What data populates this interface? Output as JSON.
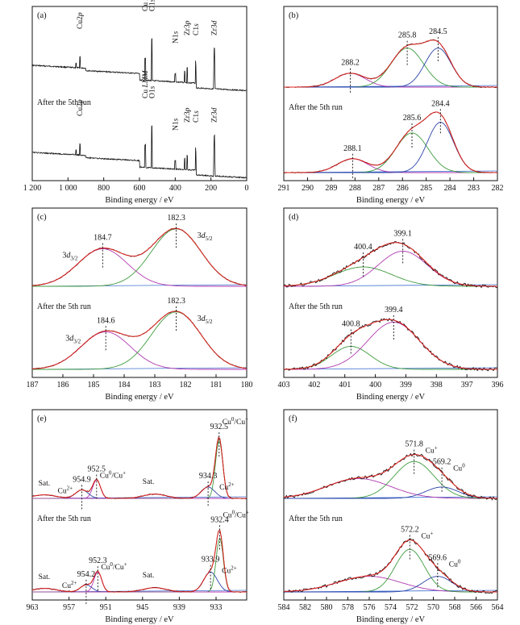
{
  "colors": {
    "raw": "#111111",
    "fit": "#e0201b",
    "green": "#3e9b3e",
    "blue": "#2c45a8",
    "magenta": "#b03ab0",
    "baseline": "#3f6fd0"
  },
  "xlabel": "Binding energy / eV",
  "run_label": "After the 5th run",
  "chart_data": [
    {
      "panel": "(a)",
      "type": "line",
      "xlim": [
        1200,
        0
      ],
      "xticks": [
        1200,
        1000,
        800,
        600,
        400,
        200,
        0
      ],
      "xtick_labels": [
        "1 200",
        "1 000",
        "800",
        "600",
        "400",
        "200",
        "0"
      ],
      "series": [
        {
          "values": [],
          "peaks": [
            [
              933,
              "Cu2p"
            ],
            [
              568,
              "Cu LMM"
            ],
            [
              531,
              "O1s"
            ],
            [
              400,
              "N1s"
            ],
            [
              333,
              "Zr3p"
            ],
            [
              285,
              "C1s"
            ],
            [
              182,
              "Zr3d"
            ]
          ]
        },
        {
          "values": [],
          "peaks": [
            [
              933,
              "Cu2p"
            ],
            [
              568,
              "Cu LMM"
            ],
            [
              531,
              "O1s"
            ],
            [
              400,
              "N1s"
            ],
            [
              333,
              "Zr3p"
            ],
            [
              285,
              "C1s"
            ],
            [
              182,
              "Zr3d"
            ]
          ]
        }
      ]
    },
    {
      "panel": "(b)",
      "type": "line",
      "xlim": [
        291,
        282
      ],
      "xticks": [
        291,
        290,
        289,
        288,
        287,
        286,
        285,
        284,
        283,
        282
      ],
      "xtick_labels": [
        "291",
        "290",
        "289",
        "288",
        "287",
        "286",
        "285",
        "284",
        "283",
        "282"
      ],
      "series": [
        {
          "peaks": [
            {
              "x": 288.2,
              "label": "288.2",
              "color": "magenta",
              "h": 0.22,
              "w": 0.75
            },
            {
              "x": 285.8,
              "label": "285.8",
              "color": "green",
              "h": 0.62,
              "w": 0.8
            },
            {
              "x": 284.5,
              "label": "284.5",
              "color": "blue",
              "h": 0.62,
              "w": 0.65
            }
          ]
        },
        {
          "peaks": [
            {
              "x": 288.1,
              "label": "288.1",
              "color": "magenta",
              "h": 0.22,
              "w": 0.75
            },
            {
              "x": 285.6,
              "label": "285.6",
              "color": "green",
              "h": 0.63,
              "w": 0.8
            },
            {
              "x": 284.4,
              "label": "284.4",
              "color": "blue",
              "h": 0.8,
              "w": 0.65
            }
          ]
        }
      ]
    },
    {
      "panel": "(c)",
      "type": "line",
      "xlim": [
        187,
        180
      ],
      "xticks": [
        187,
        186,
        185,
        184,
        183,
        182,
        181,
        180
      ],
      "xtick_labels": [
        "187",
        "186",
        "185",
        "184",
        "183",
        "182",
        "181",
        "180"
      ],
      "series": [
        {
          "peaks": [
            {
              "x": 184.7,
              "label": "184.7",
              "color": "magenta",
              "h": 0.62,
              "w": 0.95,
              "orbital": "3d3/2"
            },
            {
              "x": 182.3,
              "label": "182.3",
              "color": "green",
              "h": 0.95,
              "w": 0.95,
              "orbital": "3d5/2"
            }
          ]
        },
        {
          "peaks": [
            {
              "x": 184.6,
              "label": "184.6",
              "color": "magenta",
              "h": 0.62,
              "w": 0.95,
              "orbital": "3d3/2"
            },
            {
              "x": 182.3,
              "label": "182.3",
              "color": "green",
              "h": 0.95,
              "w": 0.95,
              "orbital": "3d5/2"
            }
          ]
        }
      ]
    },
    {
      "panel": "(d)",
      "type": "line",
      "xlim": [
        403,
        396
      ],
      "xticks": [
        403,
        402,
        401,
        400,
        399,
        398,
        397,
        396
      ],
      "xtick_labels": [
        "403",
        "402",
        "401",
        "400",
        "399",
        "398",
        "397",
        "396"
      ],
      "series": [
        {
          "peaks": [
            {
              "x": 400.4,
              "label": "400.4",
              "color": "green",
              "h": 0.32,
              "w": 1.1
            },
            {
              "x": 399.1,
              "label": "399.1",
              "color": "magenta",
              "h": 0.58,
              "w": 0.95
            }
          ]
        },
        {
          "peaks": [
            {
              "x": 400.8,
              "label": "400.8",
              "color": "green",
              "h": 0.38,
              "w": 0.75
            },
            {
              "x": 399.4,
              "label": "399.4",
              "color": "magenta",
              "h": 0.78,
              "w": 1.0
            }
          ]
        }
      ]
    },
    {
      "panel": "(e)",
      "type": "line",
      "xlim": [
        963,
        928
      ],
      "xticks": [
        963,
        957,
        951,
        945,
        939,
        933
      ],
      "xtick_labels": [
        "963",
        "957",
        "951",
        "945",
        "939",
        "933"
      ],
      "series": [
        {
          "peaks": [
            {
              "x": 954.9,
              "label": "954.9",
              "color": "blue",
              "h": 0.12,
              "w": 1.2,
              "species": "Cu2+"
            },
            {
              "x": 952.5,
              "label": "952.5",
              "color": "magenta",
              "h": 0.26,
              "w": 0.75,
              "species": "Cu0/Cu+"
            },
            {
              "x": 934.3,
              "label": "934.3",
              "color": "blue",
              "h": 0.16,
              "w": 1.3,
              "species": "Cu2+"
            },
            {
              "x": 932.5,
              "label": "932.5",
              "color": "green",
              "h": 0.82,
              "w": 0.7,
              "species": "Cu0/Cu+"
            }
          ],
          "sat": [
            [
              961,
              0.05
            ],
            [
              943,
              0.06
            ]
          ]
        },
        {
          "peaks": [
            {
              "x": 954.2,
              "label": "954.2",
              "color": "blue",
              "h": 0.1,
              "w": 1.1,
              "species": "Cu2+"
            },
            {
              "x": 952.3,
              "label": "952.3",
              "color": "magenta",
              "h": 0.28,
              "w": 0.75,
              "species": "Cu0/Cu+"
            },
            {
              "x": 933.9,
              "label": "933.9",
              "color": "blue",
              "h": 0.28,
              "w": 1.3,
              "species": "Cu2+"
            },
            {
              "x": 932.4,
              "label": "932.4",
              "color": "green",
              "h": 0.76,
              "w": 0.7,
              "species": "Cu0/Cu+"
            }
          ],
          "sat": [
            [
              961,
              0.05
            ],
            [
              943,
              0.06
            ]
          ]
        }
      ]
    },
    {
      "panel": "(f)",
      "type": "line",
      "xlim": [
        584,
        564
      ],
      "xticks": [
        584,
        582,
        580,
        578,
        576,
        574,
        572,
        570,
        568,
        566,
        564
      ],
      "xtick_labels": [
        "584",
        "582",
        "580",
        "578",
        "576",
        "574",
        "572",
        "570",
        "568",
        "566",
        "564"
      ],
      "series": [
        {
          "peaks": [
            {
              "x": 577,
              "label": "",
              "color": "magenta",
              "h": 0.28,
              "w": 3.5
            },
            {
              "x": 571.8,
              "label": "571.8",
              "color": "green",
              "h": 0.52,
              "w": 2.2,
              "species": "Cu+"
            },
            {
              "x": 569.2,
              "label": "569.2",
              "color": "blue",
              "h": 0.16,
              "w": 1.8,
              "species": "Cu0"
            }
          ]
        },
        {
          "peaks": [
            {
              "x": 576,
              "label": "",
              "color": "magenta",
              "h": 0.22,
              "w": 3.5
            },
            {
              "x": 572.2,
              "label": "572.2",
              "color": "green",
              "h": 0.6,
              "w": 1.6,
              "species": "Cu+"
            },
            {
              "x": 569.6,
              "label": "569.6",
              "color": "blue",
              "h": 0.22,
              "w": 1.6,
              "species": "Cu0"
            }
          ]
        }
      ]
    }
  ],
  "labels": {
    "sat": "Sat.",
    "cu2p": "Cu2p",
    "culmm": "Cu LMM",
    "o1s": "O1s",
    "n1s": "N1s",
    "zr3p": "Zr3p",
    "c1s": "C1s",
    "zr3d": "Zr3d",
    "d32": "3d3/2",
    "d52": "3d5/2",
    "cu2plus": "Cu2+",
    "cu0cu": "Cu0/Cu+",
    "cuplus": "Cu+",
    "cu0": "Cu0"
  }
}
